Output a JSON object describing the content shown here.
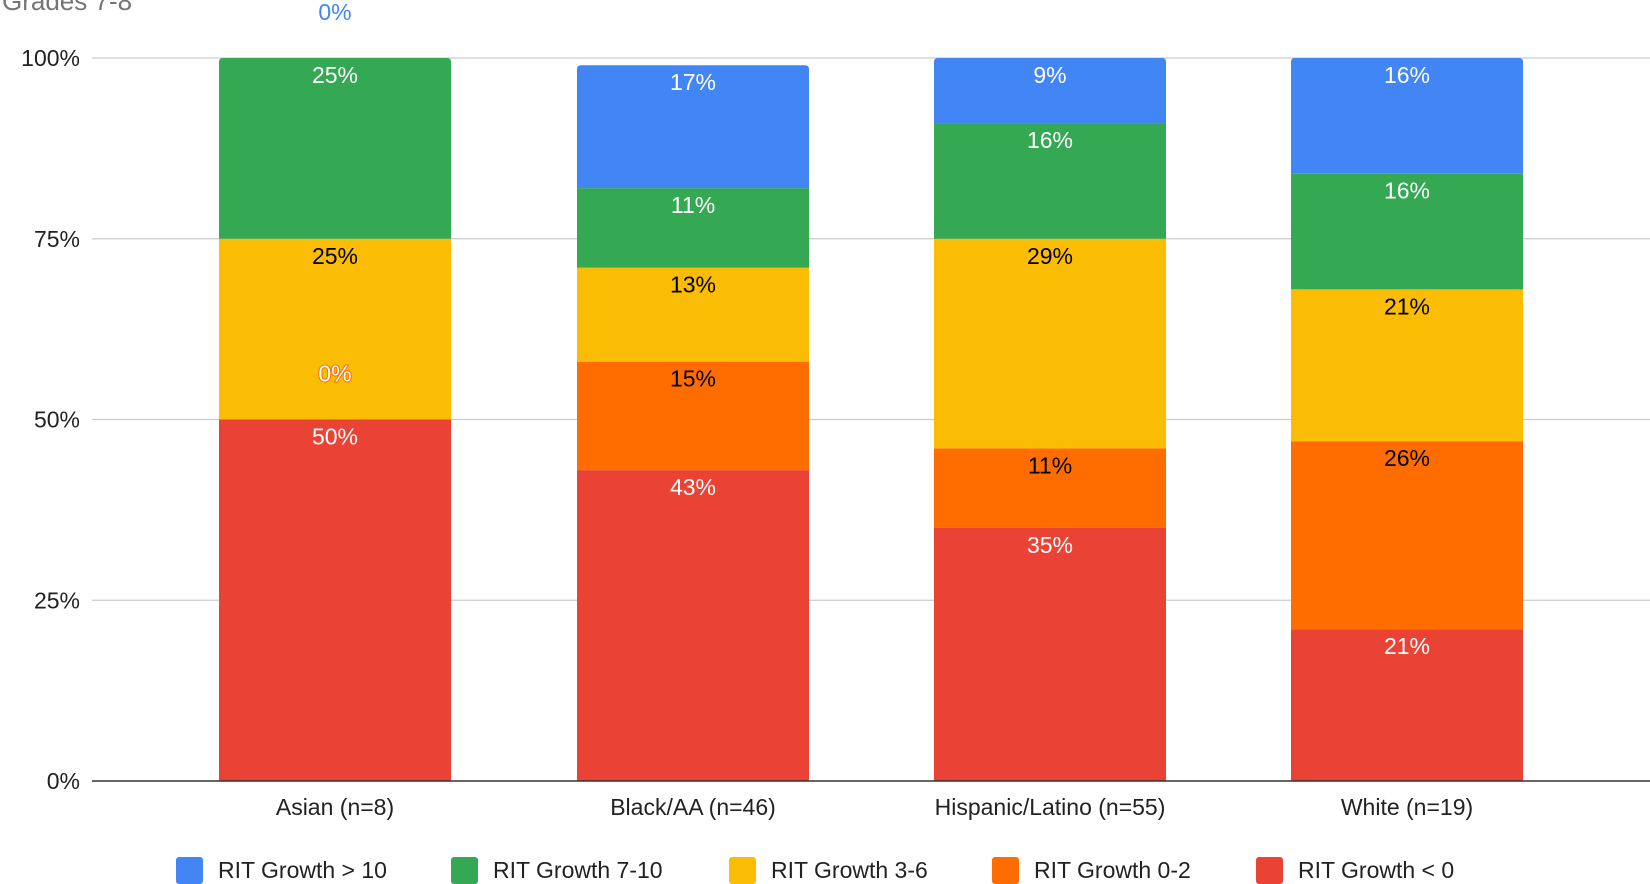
{
  "chart_data": {
    "type": "bar",
    "stacked": true,
    "title": "Grades 7-8",
    "xlabel": "",
    "ylabel": "",
    "ylim": [
      0,
      100
    ],
    "y_ticks": [
      "0%",
      "25%",
      "50%",
      "75%",
      "100%"
    ],
    "grid": true,
    "legend_position": "bottom",
    "categories": [
      "Asian (n=8)",
      "Black/AA (n=46)",
      "Hispanic/Latino (n=55)",
      "White (n=19)"
    ],
    "series": [
      {
        "name": "RIT Growth < 0",
        "color": "#ea4335",
        "label_color": "#ffffff",
        "values": [
          50,
          43,
          35,
          21
        ],
        "labels": [
          "50%",
          "43%",
          "35%",
          "21%"
        ]
      },
      {
        "name": "RIT Growth 0-2",
        "color": "#ff6d01",
        "label_color": "#000000",
        "values": [
          0,
          15,
          11,
          26
        ],
        "labels": [
          "0%",
          "15%",
          "11%",
          "26%"
        ]
      },
      {
        "name": "RIT Growth 3-6",
        "color": "#fbbc04",
        "label_color": "#000000",
        "values": [
          25,
          13,
          29,
          21
        ],
        "labels": [
          "25%",
          "13%",
          "29%",
          "21%"
        ]
      },
      {
        "name": "RIT Growth 7-10",
        "color": "#34a853",
        "label_color": "#ffffff",
        "values": [
          25,
          11,
          16,
          16
        ],
        "labels": [
          "25%",
          "11%",
          "16%",
          "16%"
        ]
      },
      {
        "name": "RIT Growth > 10",
        "color": "#4285f4",
        "label_color": "#ffffff",
        "values": [
          0,
          17,
          9,
          16
        ],
        "labels": [
          "0%",
          "17%",
          "9%",
          "16%"
        ]
      }
    ]
  }
}
